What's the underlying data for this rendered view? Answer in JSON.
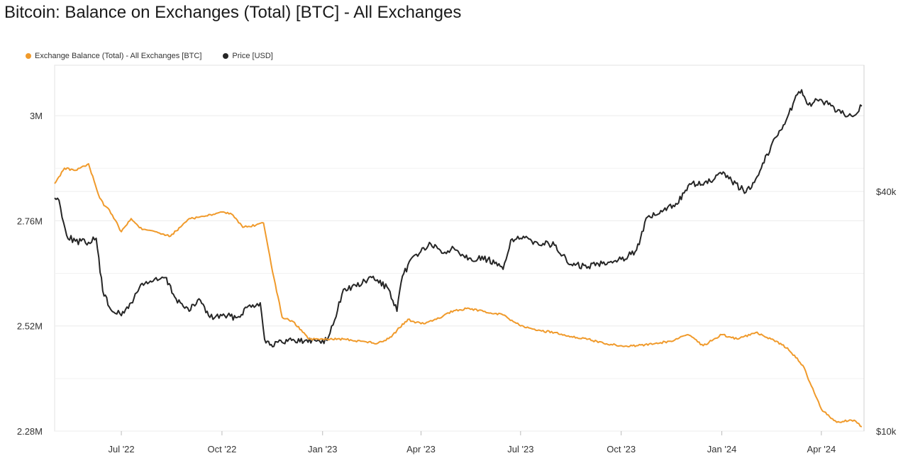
{
  "title": "Bitcoin: Balance on Exchanges (Total) [BTC] - All Exchanges",
  "legend": [
    {
      "label": "Exchange Balance (Total) - All Exchanges [BTC]",
      "color": "#f09a2b"
    },
    {
      "label": "Price [USD]",
      "color": "#262626"
    }
  ],
  "chart_data": {
    "type": "line",
    "x_domain": [
      "2022-05-01",
      "2024-05-10"
    ],
    "x_ticks": [
      {
        "date": "2022-07-01",
        "label": "Jul '22"
      },
      {
        "date": "2022-10-01",
        "label": "Oct '22"
      },
      {
        "date": "2023-01-01",
        "label": "Jan '23"
      },
      {
        "date": "2023-04-01",
        "label": "Apr '23"
      },
      {
        "date": "2023-07-01",
        "label": "Jul '23"
      },
      {
        "date": "2023-10-01",
        "label": "Oct '23"
      },
      {
        "date": "2024-01-01",
        "label": "Jan '24"
      },
      {
        "date": "2024-04-01",
        "label": "Apr '24"
      }
    ],
    "y_left": {
      "ticks": [
        {
          "value": 3000000,
          "label": "3M"
        },
        {
          "value": 2760000,
          "label": "2.76M"
        },
        {
          "value": 2520000,
          "label": "2.52M"
        },
        {
          "value": 2280000,
          "label": "2.28M"
        }
      ],
      "range": [
        2280000,
        3115000
      ]
    },
    "y_right": {
      "scale": "log",
      "ticks": [
        {
          "value": 40000,
          "label": "$40k"
        },
        {
          "value": 10000,
          "label": "$10k"
        }
      ],
      "range": [
        10000,
        83000
      ]
    },
    "grid": true,
    "series": [
      {
        "name": "Exchange Balance (Total) - All Exchanges [BTC]",
        "axis": "left",
        "color": "#f09a2b",
        "x": [
          "2022-05-01",
          "2022-05-10",
          "2022-05-20",
          "2022-06-01",
          "2022-06-10",
          "2022-06-15",
          "2022-06-20",
          "2022-07-01",
          "2022-07-10",
          "2022-07-20",
          "2022-08-01",
          "2022-08-15",
          "2022-09-01",
          "2022-09-15",
          "2022-10-01",
          "2022-10-10",
          "2022-10-20",
          "2022-11-01",
          "2022-11-08",
          "2022-11-15",
          "2022-11-25",
          "2022-12-05",
          "2022-12-20",
          "2023-01-05",
          "2023-01-20",
          "2023-02-05",
          "2023-02-20",
          "2023-03-05",
          "2023-03-10",
          "2023-03-20",
          "2023-04-01",
          "2023-04-15",
          "2023-05-01",
          "2023-05-15",
          "2023-06-01",
          "2023-06-15",
          "2023-07-01",
          "2023-07-15",
          "2023-08-01",
          "2023-08-15",
          "2023-09-01",
          "2023-09-15",
          "2023-10-01",
          "2023-10-15",
          "2023-11-01",
          "2023-11-15",
          "2023-12-01",
          "2023-12-15",
          "2024-01-01",
          "2024-01-15",
          "2024-02-01",
          "2024-02-15",
          "2024-03-01",
          "2024-03-15",
          "2024-04-01",
          "2024-04-15",
          "2024-05-01",
          "2024-05-08"
        ],
        "y": [
          2845000,
          2880000,
          2875000,
          2890000,
          2820000,
          2795000,
          2785000,
          2735000,
          2765000,
          2740000,
          2735000,
          2725000,
          2765000,
          2770000,
          2780000,
          2775000,
          2745000,
          2750000,
          2755000,
          2660000,
          2540000,
          2530000,
          2490000,
          2490000,
          2490000,
          2485000,
          2480000,
          2495000,
          2510000,
          2535000,
          2525000,
          2535000,
          2555000,
          2560000,
          2550000,
          2545000,
          2520000,
          2510000,
          2505000,
          2495000,
          2490000,
          2480000,
          2475000,
          2475000,
          2480000,
          2485000,
          2500000,
          2475000,
          2500000,
          2490000,
          2505000,
          2490000,
          2470000,
          2430000,
          2330000,
          2300000,
          2305000,
          2290000
        ]
      },
      {
        "name": "Price [USD]",
        "axis": "right",
        "color": "#262626",
        "x": [
          "2022-05-01",
          "2022-05-05",
          "2022-05-12",
          "2022-05-20",
          "2022-06-01",
          "2022-06-08",
          "2022-06-14",
          "2022-06-20",
          "2022-07-01",
          "2022-07-10",
          "2022-07-20",
          "2022-07-30",
          "2022-08-10",
          "2022-08-20",
          "2022-09-01",
          "2022-09-10",
          "2022-09-20",
          "2022-10-01",
          "2022-10-15",
          "2022-10-25",
          "2022-11-05",
          "2022-11-09",
          "2022-11-15",
          "2022-11-25",
          "2022-12-05",
          "2022-12-15",
          "2022-12-25",
          "2023-01-05",
          "2023-01-12",
          "2023-01-20",
          "2023-02-01",
          "2023-02-15",
          "2023-03-01",
          "2023-03-10",
          "2023-03-15",
          "2023-03-25",
          "2023-04-10",
          "2023-04-20",
          "2023-05-01",
          "2023-05-15",
          "2023-06-01",
          "2023-06-15",
          "2023-06-22",
          "2023-07-01",
          "2023-07-15",
          "2023-08-01",
          "2023-08-15",
          "2023-08-20",
          "2023-09-01",
          "2023-09-15",
          "2023-10-01",
          "2023-10-15",
          "2023-10-25",
          "2023-11-05",
          "2023-11-20",
          "2023-12-05",
          "2023-12-15",
          "2024-01-01",
          "2024-01-10",
          "2024-01-23",
          "2024-02-01",
          "2024-02-15",
          "2024-03-01",
          "2024-03-10",
          "2024-03-14",
          "2024-03-20",
          "2024-04-01",
          "2024-04-15",
          "2024-05-01",
          "2024-05-08"
        ],
        "y": [
          38500,
          38000,
          31000,
          30000,
          29800,
          30500,
          22500,
          20500,
          19500,
          21000,
          23500,
          23800,
          24300,
          21500,
          20000,
          21500,
          19300,
          19500,
          19300,
          20600,
          21000,
          17000,
          16500,
          16700,
          17000,
          16800,
          16900,
          16900,
          19000,
          22700,
          23100,
          24300,
          23000,
          20000,
          24500,
          27500,
          29500,
          28000,
          28800,
          27200,
          27000,
          25500,
          30200,
          30500,
          29900,
          29300,
          26200,
          26100,
          25900,
          26600,
          27000,
          28500,
          34500,
          35200,
          37300,
          42000,
          41500,
          44200,
          42500,
          39800,
          43000,
          52000,
          61500,
          70000,
          72000,
          66000,
          68000,
          63500,
          62000,
          65500
        ]
      }
    ]
  }
}
